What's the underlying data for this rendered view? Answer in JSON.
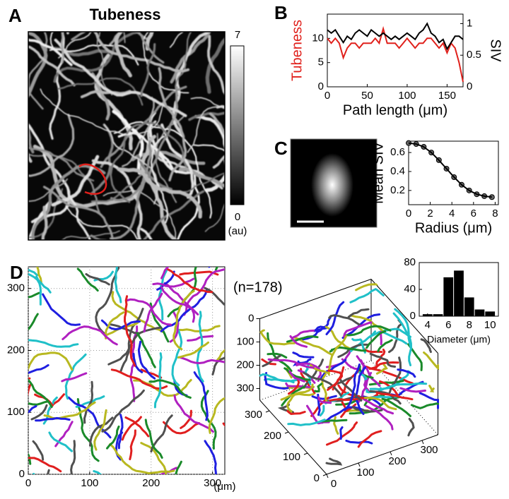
{
  "chart_data": [
    {
      "type": "image",
      "panel": "A",
      "title": "Tubeness",
      "colorbar": {
        "lim": [
          0,
          7
        ],
        "ticks": [
          7,
          0
        ],
        "unit": "(au)"
      }
    },
    {
      "type": "line",
      "panel": "B",
      "xlabel": "Path length (μm)",
      "x": [
        0,
        5,
        10,
        15,
        20,
        25,
        30,
        35,
        40,
        45,
        50,
        55,
        60,
        65,
        70,
        75,
        80,
        85,
        90,
        95,
        100,
        105,
        110,
        115,
        120,
        125,
        130,
        135,
        140,
        145,
        150,
        155,
        160,
        165,
        170
      ],
      "xlim": [
        0,
        170
      ],
      "xticks": [
        0,
        50,
        100,
        150
      ],
      "ylim": [
        0,
        15
      ],
      "yticks": [
        0,
        5,
        10
      ],
      "y2lim": [
        0,
        1.15
      ],
      "y2ticks": [
        0,
        0.5,
        1
      ],
      "series": [
        {
          "name": "Tubeness",
          "color": "#e0201b",
          "values": [
            10,
            9,
            10,
            9,
            6,
            8,
            9,
            9,
            8,
            9,
            9,
            9,
            10,
            9,
            12,
            9,
            9,
            9,
            8,
            9,
            10,
            9,
            8,
            9,
            9,
            10,
            10,
            9,
            8,
            9,
            7,
            9,
            8,
            5,
            1
          ]
        },
        {
          "name": "SIV",
          "color": "#000000",
          "axis": "y2",
          "values": [
            0.9,
            0.85,
            0.9,
            0.8,
            0.7,
            0.8,
            0.75,
            0.85,
            0.9,
            0.85,
            0.8,
            0.9,
            0.85,
            0.8,
            0.85,
            0.8,
            0.75,
            0.8,
            0.75,
            0.8,
            0.85,
            0.8,
            0.75,
            0.85,
            0.9,
            1.0,
            0.85,
            0.8,
            0.7,
            0.75,
            0.6,
            0.7,
            0.8,
            0.8,
            0.75
          ]
        }
      ]
    },
    {
      "type": "line",
      "panel": "C",
      "xlabel": "Radius (μm)",
      "x": [
        0,
        0.7,
        1.4,
        2.1,
        2.8,
        3.5,
        4.2,
        4.9,
        5.6,
        6.3,
        7,
        7.7
      ],
      "xlim": [
        0,
        8.3
      ],
      "xticks": [
        0,
        2,
        4,
        6,
        8
      ],
      "ylim": [
        0.05,
        0.72
      ],
      "yticks": [
        0.2,
        0.4,
        0.6
      ],
      "markers": true,
      "series": [
        {
          "name": "Mean SIV",
          "color": "#000000",
          "values": [
            0.7,
            0.69,
            0.66,
            0.6,
            0.52,
            0.43,
            0.34,
            0.26,
            0.2,
            0.16,
            0.14,
            0.13
          ]
        }
      ]
    },
    {
      "type": "trace2d",
      "panel": "D",
      "unit": "(μm)",
      "xlim": [
        0,
        320
      ],
      "ylim": [
        0,
        335
      ],
      "xticks": [
        0,
        100,
        200,
        300
      ],
      "yticks": [
        0,
        100,
        200,
        300
      ],
      "grid": true,
      "colors": [
        "#1f1fe0",
        "#e01f1f",
        "#1a8a2a",
        "#b020c0",
        "#20c0c8",
        "#b8b820",
        "#505050"
      ]
    },
    {
      "type": "trace3d",
      "annotation": "(n=178)",
      "xlim": [
        0,
        350
      ],
      "ylim": [
        0,
        350
      ],
      "zlim": [
        0,
        350
      ],
      "xticks": [
        0,
        100,
        200,
        300
      ],
      "yticks": [
        0,
        100,
        200,
        300
      ],
      "zticks": [
        0,
        100,
        200,
        300
      ],
      "colors": [
        "#1f1fe0",
        "#e01f1f",
        "#1a8a2a",
        "#b020c0",
        "#20c0c8",
        "#b8b820",
        "#505050"
      ]
    },
    {
      "type": "histogram",
      "xlabel": "Diameter (μm)",
      "bins": [
        3.5,
        4.5,
        5.5,
        6.5,
        7.5,
        8.5,
        9.5,
        10.5
      ],
      "values": [
        3,
        3,
        58,
        68,
        28,
        10,
        7
      ],
      "color": "#000000",
      "xlim": [
        3.2,
        10.8
      ],
      "xticks": [
        4,
        6,
        8,
        10
      ],
      "ylim": [
        0,
        80
      ],
      "yticks": [
        0,
        40,
        80
      ]
    }
  ]
}
